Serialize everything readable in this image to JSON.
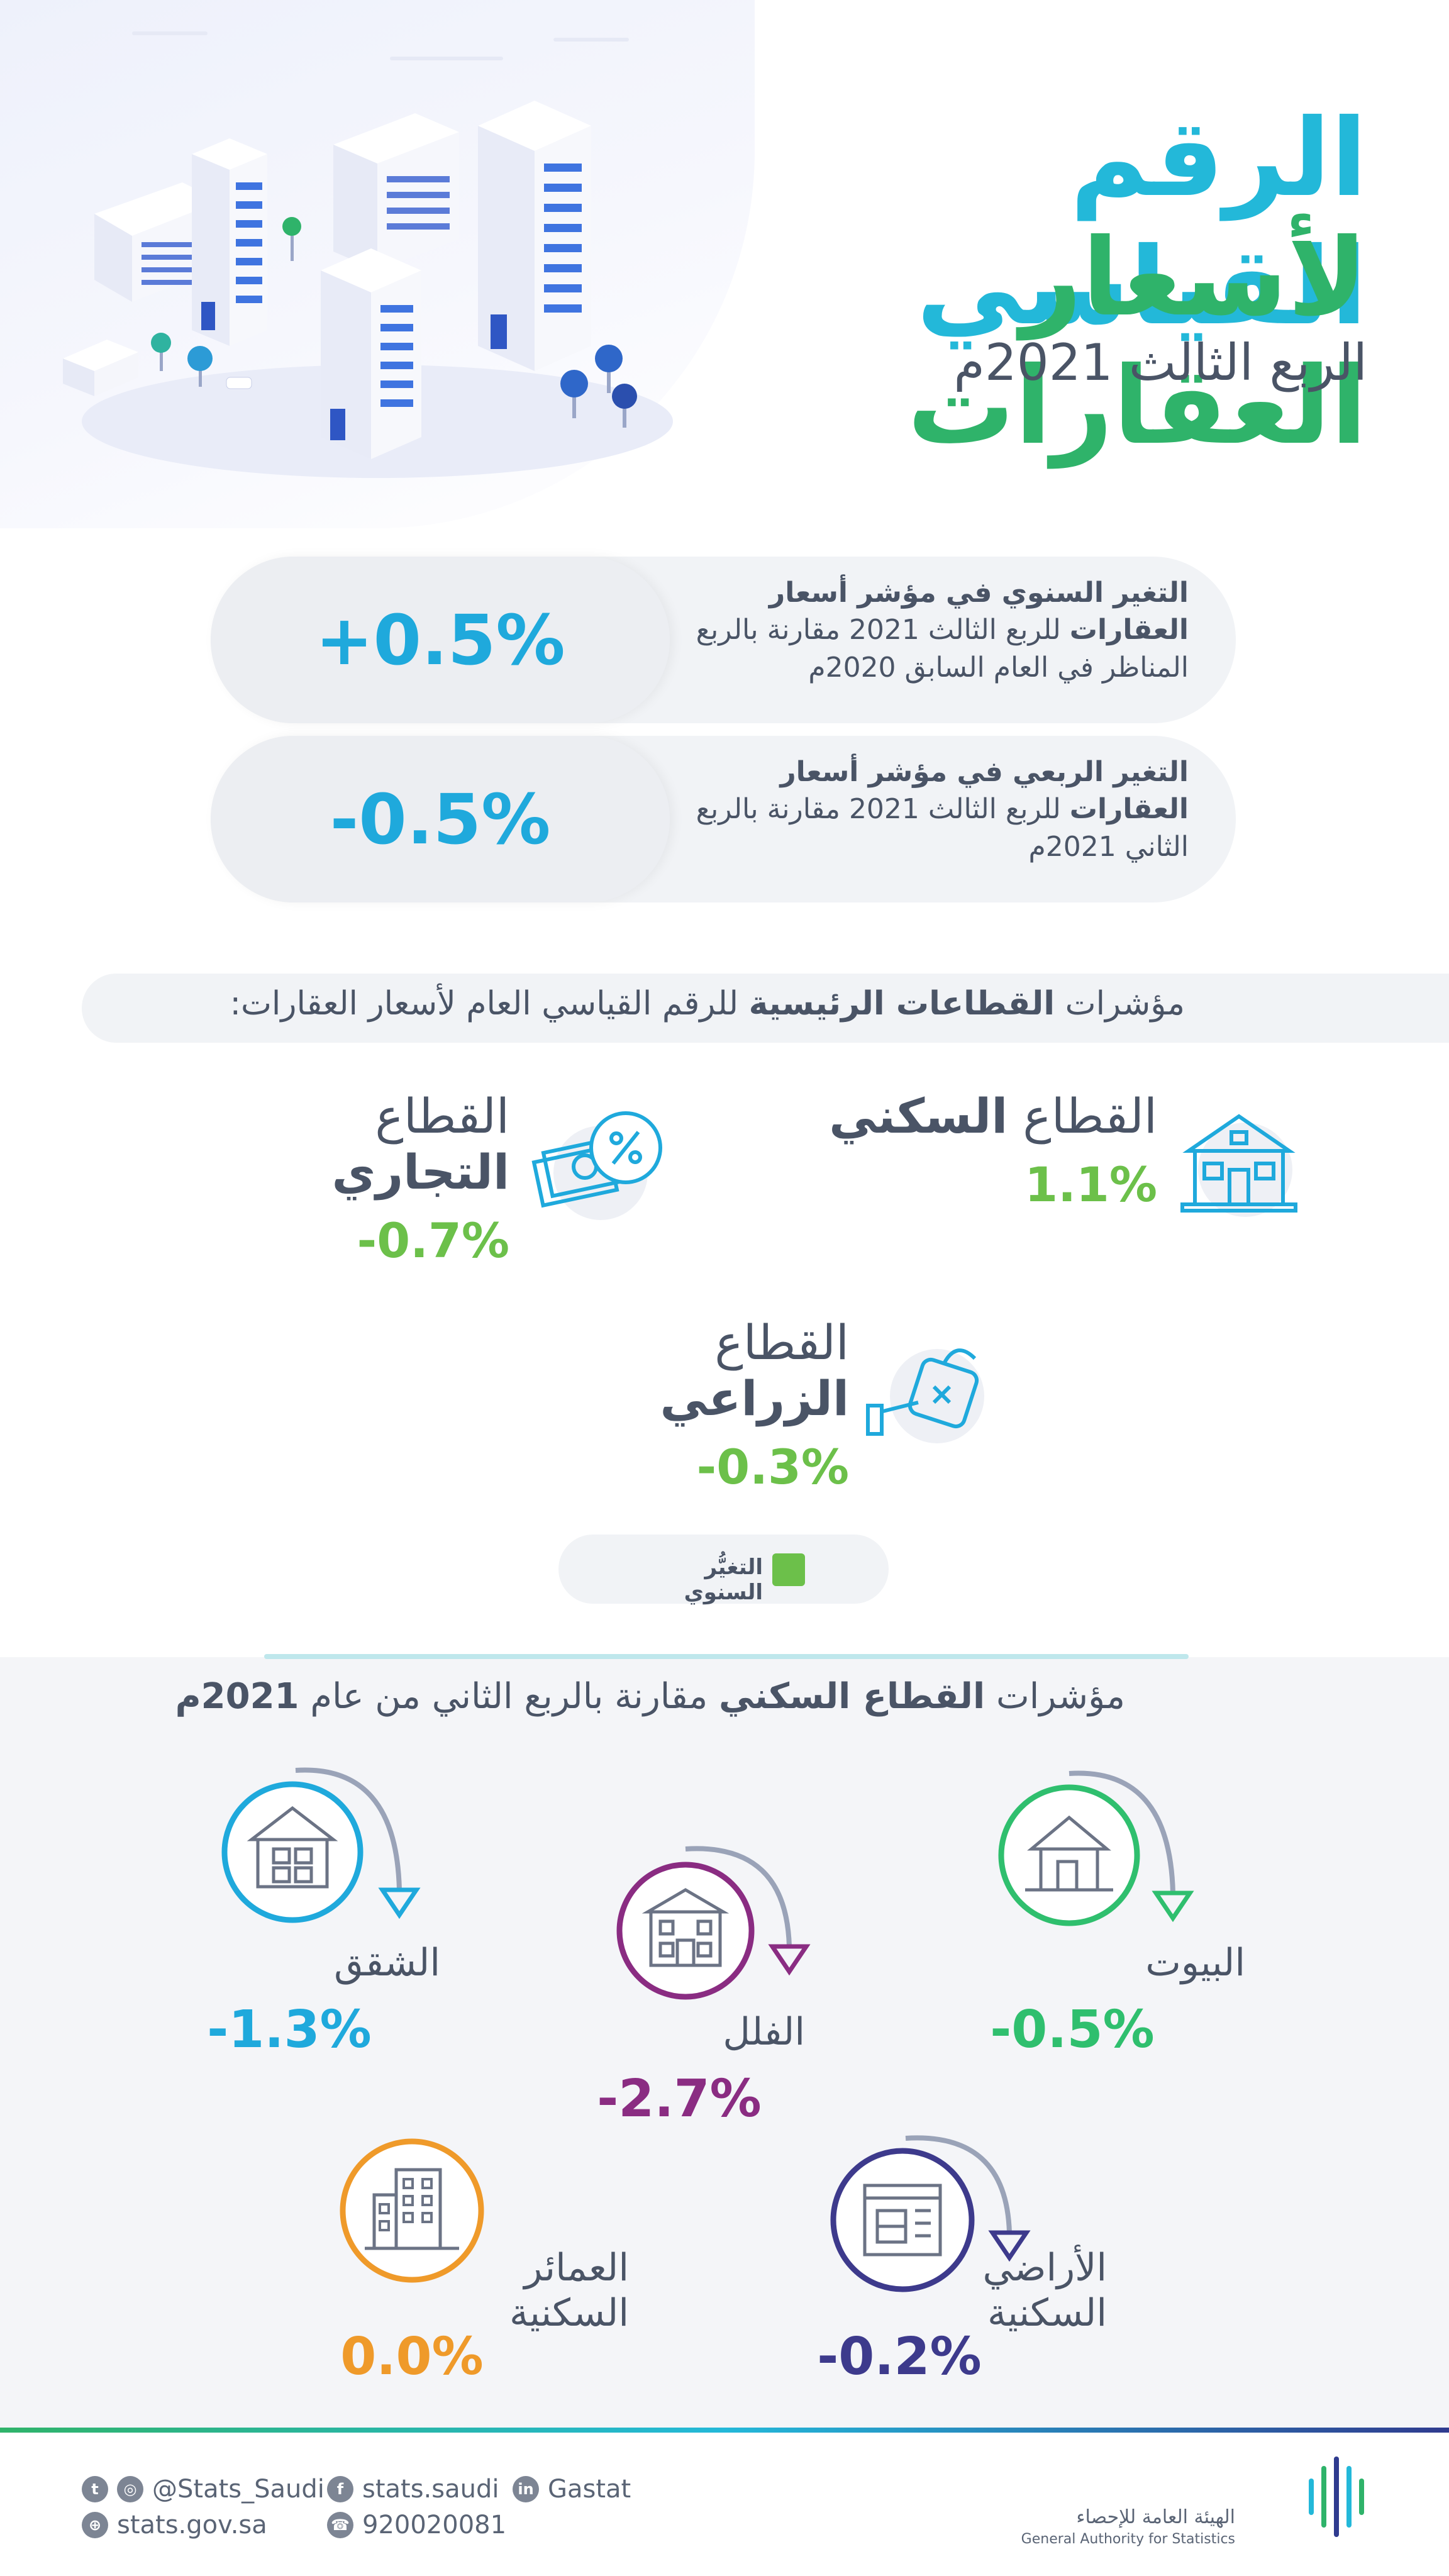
{
  "hero": {
    "title_line1": "الرقم القياسي",
    "title_line2": "لأسعار العقارات",
    "subtitle": "الربع الثالث 2021م"
  },
  "stats": [
    {
      "value": "+0.5%",
      "text_bold": "التغير السنوي في مؤشر أسعار العقارات",
      "text_rest": "للربع الثالث 2021 مقارنة بالربع المناظر في العام السابق 2020م"
    },
    {
      "value": "-0.5%",
      "text_bold": "التغير الربعي في مؤشر أسعار العقارات",
      "text_rest": "للربع الثالث 2021 مقارنة بالربع الثاني 2021م"
    }
  ],
  "sectors_header": {
    "prefix": "مؤشرات",
    "bold": "القطاعات الرئيسية",
    "suffix": "للرقم القياسي العام لأسعار العقارات:"
  },
  "sectors": [
    {
      "name_prefix": "القطاع",
      "name_bold": "السكني",
      "value": "1.1%",
      "icon": "house-icon"
    },
    {
      "name_prefix": "القطاع",
      "name_bold": "التجاري",
      "value": "-0.7%",
      "icon": "money-percent-icon"
    },
    {
      "name_prefix": "القطاع",
      "name_bold": "الزراعي",
      "value": "-0.3%",
      "icon": "watering-can-icon"
    }
  ],
  "legend": {
    "label": "التغيُّر السنوي",
    "color": "#6cc04a"
  },
  "residential": {
    "title_prefix": "مؤشرات",
    "title_bold": "القطاع السكني",
    "title_middle": "مقارنة بالربع الثاني من عام",
    "title_year": "2021م",
    "items": [
      {
        "name": "البيوت",
        "value": "-0.5%",
        "color": "#2fbf6e",
        "icon": "house-outline-icon"
      },
      {
        "name": "الفلل",
        "value": "-2.7%",
        "color": "#8a2c82",
        "icon": "villa-icon"
      },
      {
        "name": "الشقق",
        "value": "-1.3%",
        "color": "#1fa9dc",
        "icon": "apartment-icon"
      },
      {
        "name": "الأراضي السكنية",
        "value": "-0.2%",
        "color": "#3d3a8c",
        "icon": "land-plan-icon"
      },
      {
        "name": "العمائر السكنية",
        "value": "0.0%",
        "color": "#ef9a2a",
        "icon": "building-icon"
      }
    ]
  },
  "footer": {
    "twitter_instagram": "@Stats_Saudi",
    "facebook": "stats.saudi",
    "linkedin": "Gastat",
    "website": "stats.gov.sa",
    "phone": "920020081",
    "org_name_ar": "الهيئة العامة للإحصاء",
    "org_name_en": "General Authority for Statistics"
  }
}
